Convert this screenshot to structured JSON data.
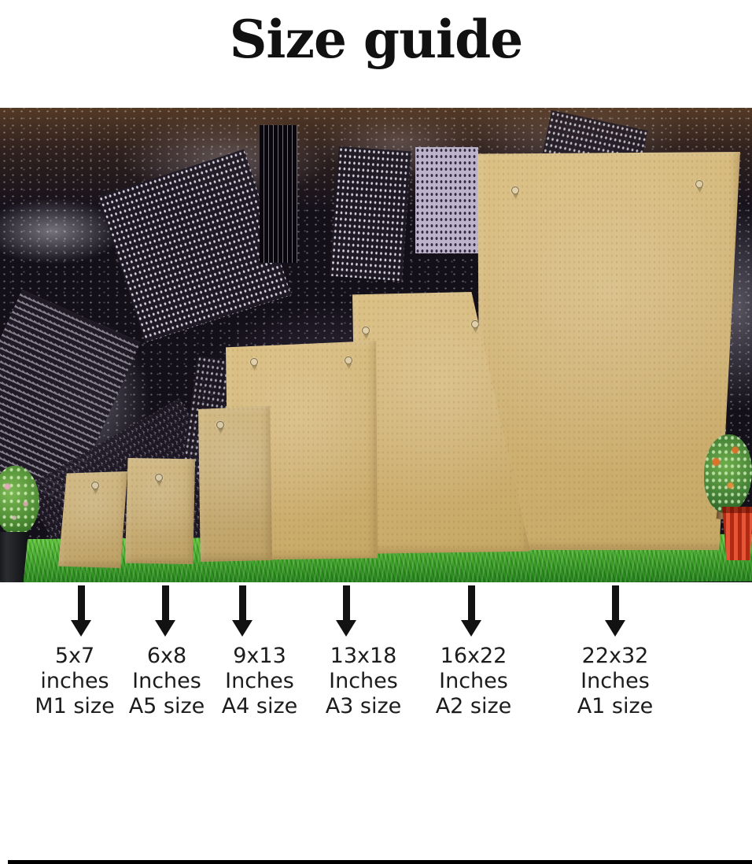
{
  "title": "Size guide",
  "colors": {
    "backdrop": "#14101a",
    "board": "#d0b274",
    "board-light": "#dbc083",
    "board-dark": "#c5a765",
    "grass": "#3fa32a",
    "grass-light": "#63c83e",
    "grass-dark": "#23821a",
    "pot-red": "#e85535",
    "arrow": "#121212",
    "text": "#1c1c1c"
  },
  "icons": {
    "size_pointer": "down-arrow",
    "board_hardware": "d-ring-hanger"
  },
  "boards": [
    {
      "dimensions": "5x7",
      "unit": "inches",
      "size_name": "M1 size"
    },
    {
      "dimensions": "6x8",
      "unit": "Inches",
      "size_name": "A5 size"
    },
    {
      "dimensions": "9x13",
      "unit": "Inches",
      "size_name": "A4 size"
    },
    {
      "dimensions": "13x18",
      "unit": "Inches",
      "size_name": "A3 size"
    },
    {
      "dimensions": "16x22",
      "unit": "Inches",
      "size_name": "A2 size"
    },
    {
      "dimensions": "22x32",
      "unit": "Inches",
      "size_name": "A1 size"
    }
  ]
}
